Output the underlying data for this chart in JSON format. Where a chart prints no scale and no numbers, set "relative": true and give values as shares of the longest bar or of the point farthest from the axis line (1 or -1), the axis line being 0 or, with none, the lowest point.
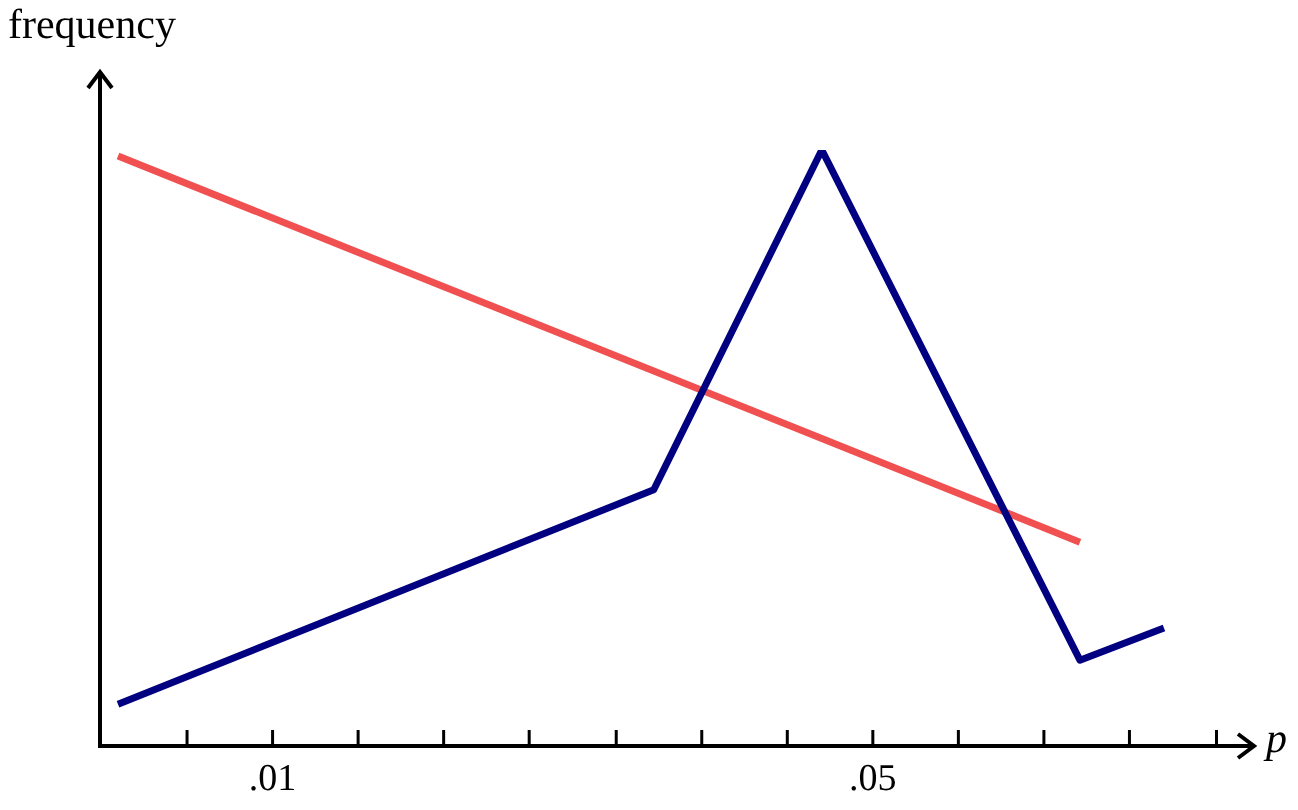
{
  "chart_data": {
    "type": "line",
    "xlabel": "p",
    "ylabel": "frequency",
    "relative": true,
    "xlim": [
      -0.0015,
      0.0754
    ],
    "xticks": [
      {
        "value": 0.0043,
        "label": null
      },
      {
        "value": 0.01,
        "label": ".01"
      },
      {
        "value": 0.0157,
        "label": null
      },
      {
        "value": 0.0214,
        "label": null
      },
      {
        "value": 0.0271,
        "label": null
      },
      {
        "value": 0.0329,
        "label": null
      },
      {
        "value": 0.0386,
        "label": null
      },
      {
        "value": 0.0443,
        "label": null
      },
      {
        "value": 0.05,
        "label": ".05"
      },
      {
        "value": 0.0557,
        "label": null
      },
      {
        "value": 0.0614,
        "label": null
      },
      {
        "value": 0.0671,
        "label": null
      },
      {
        "value": 0.0729,
        "label": null
      }
    ],
    "series": [
      {
        "color": "#f05050",
        "x": [
          -0.0003,
          0.0638
        ],
        "values": [
          0.99,
          0.342
        ]
      },
      {
        "color": "#000080",
        "x": [
          -0.0003,
          0.0354,
          0.0466,
          0.0638,
          0.0694
        ],
        "values": [
          0.07,
          0.43,
          1,
          0.144,
          0.198
        ]
      }
    ]
  }
}
